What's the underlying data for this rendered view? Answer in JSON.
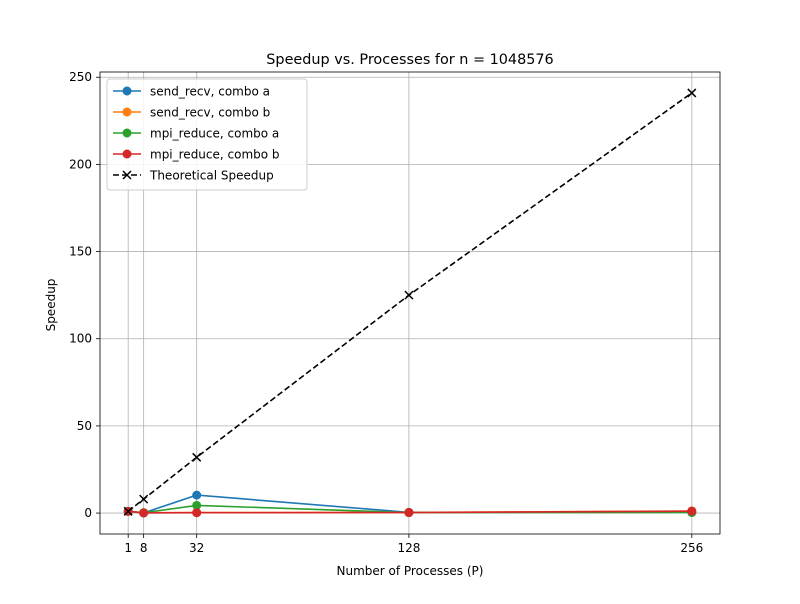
{
  "chart_data": {
    "type": "line",
    "title": "Speedup vs. Processes for n = 1048576",
    "xlabel": "Number of Processes (P)",
    "ylabel": "Speedup",
    "xlim": [
      -11.75,
      268.75
    ],
    "ylim": [
      -12.0,
      253.0
    ],
    "xticks": [
      1,
      8,
      32,
      128,
      256
    ],
    "yticks": [
      0,
      50,
      100,
      150,
      200,
      250
    ],
    "grid": true,
    "legend_position": "top-left",
    "x": [
      1,
      8,
      32,
      128,
      256
    ],
    "series": [
      {
        "name": "send_recv, combo a",
        "color": "#1f77b4",
        "marker": "circle",
        "linestyle": "solid",
        "values": [
          1.0,
          0.1,
          10.3,
          0.4,
          0.4
        ]
      },
      {
        "name": "send_recv, combo b",
        "color": "#ff7f0e",
        "marker": "circle",
        "linestyle": "solid",
        "values": [
          1.0,
          0.2,
          0.3,
          0.4,
          1.2
        ]
      },
      {
        "name": "mpi_reduce, combo a",
        "color": "#2ca02c",
        "marker": "circle",
        "linestyle": "solid",
        "values": [
          1.0,
          0.2,
          4.4,
          0.3,
          0.4
        ]
      },
      {
        "name": "mpi_reduce, combo b",
        "color": "#d62728",
        "marker": "circle",
        "linestyle": "solid",
        "values": [
          1.0,
          0.1,
          0.2,
          0.3,
          1.1
        ]
      },
      {
        "name": "Theoretical Speedup",
        "color": "#000000",
        "marker": "x",
        "linestyle": "dashed",
        "values": [
          1,
          8,
          32,
          125,
          241
        ]
      }
    ]
  }
}
